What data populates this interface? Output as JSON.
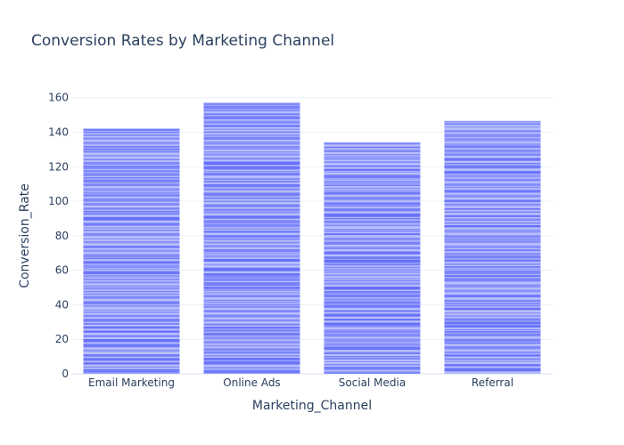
{
  "chart_data": {
    "type": "bar",
    "title": "Conversion Rates by Marketing Channel",
    "xlabel": "Marketing_Channel",
    "ylabel": "Conversion_Rate",
    "categories": [
      "Email Marketing",
      "Online Ads",
      "Social Media",
      "Referral"
    ],
    "values": [
      142,
      157,
      134,
      146.5
    ],
    "ylim": [
      0,
      165
    ],
    "yticks": [
      0,
      20,
      40,
      60,
      80,
      100,
      120,
      140,
      160
    ],
    "grid": true,
    "legend": "none",
    "bar_color": "#636efa"
  }
}
